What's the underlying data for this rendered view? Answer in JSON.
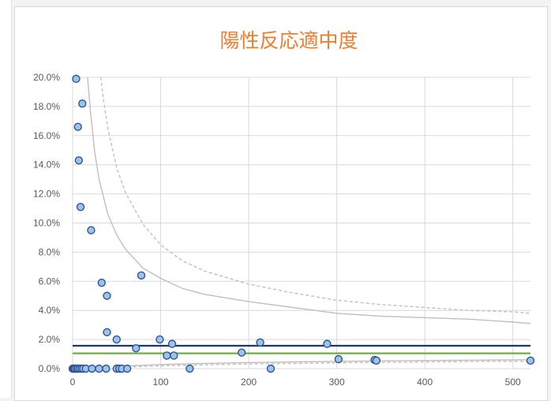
{
  "chart_data": {
    "type": "scatter",
    "title": "陽性反応適中度",
    "xlabel": "",
    "ylabel": "",
    "xlim": [
      0,
      520
    ],
    "ylim": [
      0,
      0.2
    ],
    "x_ticks": [
      0,
      100,
      200,
      300,
      400,
      500
    ],
    "x_tick_labels": [
      "0",
      "100",
      "200",
      "300",
      "400",
      "500"
    ],
    "y_ticks": [
      0,
      0.02,
      0.04,
      0.06,
      0.08,
      0.1,
      0.12,
      0.14,
      0.16,
      0.18,
      0.2
    ],
    "y_tick_labels": [
      "0.0%",
      "2.0%",
      "4.0%",
      "6.0%",
      "8.0%",
      "10.0%",
      "12.0%",
      "14.0%",
      "16.0%",
      "18.0%",
      "20.0%"
    ],
    "grid": true,
    "legend": "none",
    "series": [
      {
        "type": "scatter",
        "color": "#9dc3e6",
        "edge_color": "#2f5597",
        "points": [
          [
            4,
            0.199
          ],
          [
            6,
            0.166
          ],
          [
            7,
            0.143
          ],
          [
            9,
            0.111
          ],
          [
            11,
            0.182
          ],
          [
            21,
            0.095
          ],
          [
            33,
            0.059
          ],
          [
            39,
            0.05
          ],
          [
            39,
            0.025
          ],
          [
            50,
            0.02
          ],
          [
            72,
            0.014
          ],
          [
            78,
            0.064
          ],
          [
            99,
            0.02
          ],
          [
            107,
            0.009
          ],
          [
            113,
            0.017
          ],
          [
            115,
            0.009
          ],
          [
            192,
            0.011
          ],
          [
            213,
            0.018
          ],
          [
            289,
            0.017
          ],
          [
            302,
            0.0065
          ],
          [
            343,
            0.006
          ],
          [
            345,
            0.0055
          ],
          [
            520,
            0.0055
          ],
          [
            0,
            0
          ],
          [
            1,
            0
          ],
          [
            2,
            0
          ],
          [
            3,
            0
          ],
          [
            5,
            0
          ],
          [
            6,
            0
          ],
          [
            8,
            0
          ],
          [
            10,
            0
          ],
          [
            12,
            0
          ],
          [
            15,
            0
          ],
          [
            22,
            0
          ],
          [
            30,
            0
          ],
          [
            38,
            0
          ],
          [
            50,
            0
          ],
          [
            53,
            0
          ],
          [
            56,
            0
          ],
          [
            62,
            0
          ],
          [
            133,
            0
          ],
          [
            225,
            0
          ]
        ]
      },
      {
        "type": "hline",
        "name": "",
        "color": "#1f3864",
        "y": 0.0157
      },
      {
        "type": "hline",
        "name": "",
        "color": "#70ad47",
        "y": 0.0105
      },
      {
        "type": "curve",
        "style": "solid",
        "color": "#bfbfbf",
        "x": [
          17,
          20,
          25,
          30,
          40,
          50,
          60,
          80,
          100,
          125,
          150,
          200,
          250,
          300,
          350,
          400,
          450,
          500,
          520
        ],
        "y": [
          0.2,
          0.178,
          0.149,
          0.13,
          0.106,
          0.092,
          0.082,
          0.069,
          0.062,
          0.055,
          0.051,
          0.046,
          0.042,
          0.038,
          0.036,
          0.035,
          0.034,
          0.032,
          0.031
        ]
      },
      {
        "type": "curve",
        "style": "dashed",
        "color": "#bfbfbf",
        "x": [
          32,
          35,
          40,
          50,
          60,
          80,
          100,
          125,
          150,
          200,
          250,
          300,
          350,
          400,
          450,
          500,
          520
        ],
        "y": [
          0.2,
          0.185,
          0.165,
          0.138,
          0.121,
          0.099,
          0.085,
          0.074,
          0.067,
          0.058,
          0.052,
          0.047,
          0.044,
          0.042,
          0.04,
          0.039,
          0.038
        ]
      },
      {
        "type": "curve",
        "style": "solid",
        "color": "#bfbfbf",
        "x": [
          50,
          75,
          100,
          150,
          200,
          250,
          300,
          350,
          400,
          450,
          500,
          520
        ],
        "y": [
          0.0015,
          0.0022,
          0.0028,
          0.0036,
          0.0042,
          0.0046,
          0.005,
          0.0053,
          0.0056,
          0.0058,
          0.006,
          0.0061
        ]
      },
      {
        "type": "curve",
        "style": "dashed",
        "color": "#bfbfbf",
        "x": [
          50,
          75,
          100,
          150,
          200,
          250,
          300,
          350,
          400,
          450,
          500,
          520
        ],
        "y": [
          0.0008,
          0.0014,
          0.0019,
          0.0026,
          0.0032,
          0.0036,
          0.004,
          0.0043,
          0.0046,
          0.0048,
          0.005,
          0.0051
        ]
      }
    ]
  }
}
